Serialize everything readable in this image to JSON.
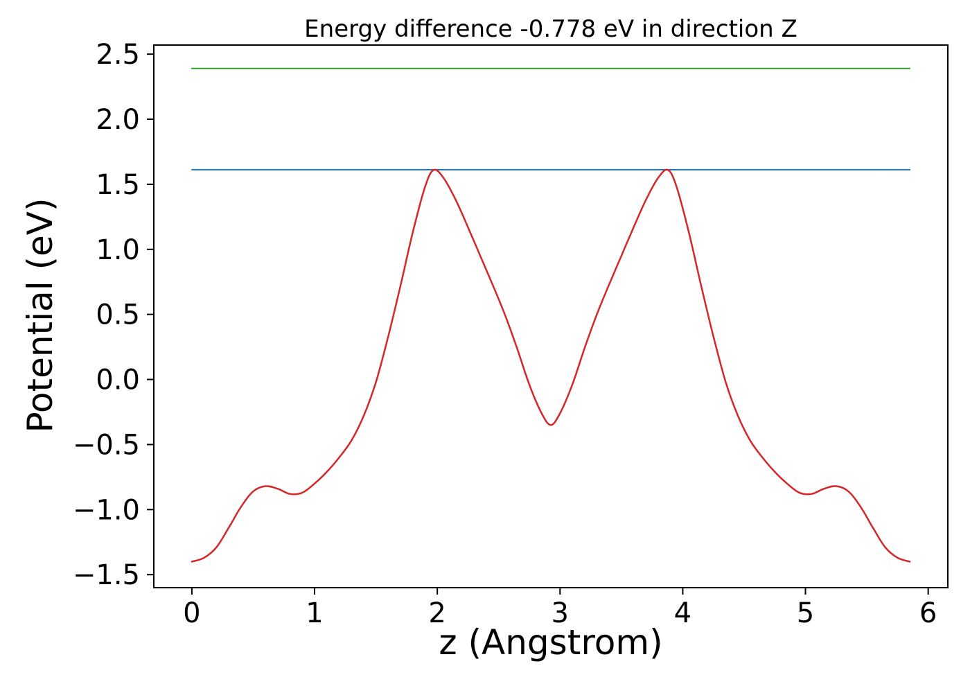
{
  "figure": {
    "background": "#ffffff",
    "axis_color": "#000000"
  },
  "chart_data": {
    "type": "line",
    "title": "Energy difference -0.778 eV in direction Z",
    "xlabel": "z (Angstrom)",
    "ylabel": "Potential (eV)",
    "xlim": [
      -0.31,
      6.16
    ],
    "ylim": [
      -1.6,
      2.57
    ],
    "grid": false,
    "legend": "none",
    "xticks": {
      "values": [
        0,
        1,
        2,
        3,
        4,
        5,
        6
      ],
      "labels": [
        "0",
        "1",
        "2",
        "3",
        "4",
        "5",
        "6"
      ]
    },
    "yticks": {
      "values": [
        -1.5,
        -1.0,
        -0.5,
        0.0,
        0.5,
        1.0,
        1.5,
        2.0,
        2.5
      ],
      "labels": [
        "−1.5",
        "−1.0",
        "−0.5",
        "0.0",
        "0.5",
        "1.0",
        "1.5",
        "2.0",
        "2.5"
      ]
    },
    "series": [
      {
        "name": "upper-energy-level",
        "color": "#2ca02c",
        "linewidth": 2,
        "smooth": false,
        "x": [
          0.0,
          5.85
        ],
        "y": [
          2.39,
          2.39
        ]
      },
      {
        "name": "lower-energy-level",
        "color": "#1f77b4",
        "linewidth": 2,
        "smooth": false,
        "x": [
          0.0,
          5.85
        ],
        "y": [
          1.612,
          1.612
        ]
      },
      {
        "name": "potential-curve",
        "color": "#d62728",
        "linewidth": 2.5,
        "smooth": true,
        "x": [
          0.0,
          0.1,
          0.2,
          0.3,
          0.4,
          0.5,
          0.6,
          0.7,
          0.8,
          0.9,
          1.0,
          1.1,
          1.2,
          1.3,
          1.4,
          1.5,
          1.6,
          1.7,
          1.8,
          1.9,
          1.97,
          2.05,
          2.15,
          2.25,
          2.35,
          2.45,
          2.55,
          2.65,
          2.75,
          2.85,
          2.925,
          3.0,
          3.1,
          3.2,
          3.3,
          3.4,
          3.5,
          3.6,
          3.7,
          3.8,
          3.88,
          3.95,
          4.05,
          4.15,
          4.25,
          4.35,
          4.45,
          4.55,
          4.65,
          4.75,
          4.85,
          4.95,
          5.05,
          5.15,
          5.25,
          5.35,
          5.45,
          5.55,
          5.65,
          5.75,
          5.85
        ],
        "y": [
          -1.4,
          -1.37,
          -1.29,
          -1.14,
          -0.98,
          -0.86,
          -0.82,
          -0.84,
          -0.88,
          -0.87,
          -0.8,
          -0.71,
          -0.6,
          -0.47,
          -0.28,
          -0.02,
          0.33,
          0.72,
          1.13,
          1.48,
          1.61,
          1.55,
          1.38,
          1.17,
          0.95,
          0.73,
          0.5,
          0.24,
          -0.04,
          -0.26,
          -0.35,
          -0.26,
          -0.04,
          0.24,
          0.5,
          0.73,
          0.95,
          1.17,
          1.38,
          1.55,
          1.61,
          1.48,
          1.13,
          0.72,
          0.33,
          -0.02,
          -0.28,
          -0.47,
          -0.6,
          -0.71,
          -0.8,
          -0.87,
          -0.88,
          -0.84,
          -0.82,
          -0.86,
          -0.98,
          -1.14,
          -1.29,
          -1.37,
          -1.4
        ]
      }
    ]
  }
}
